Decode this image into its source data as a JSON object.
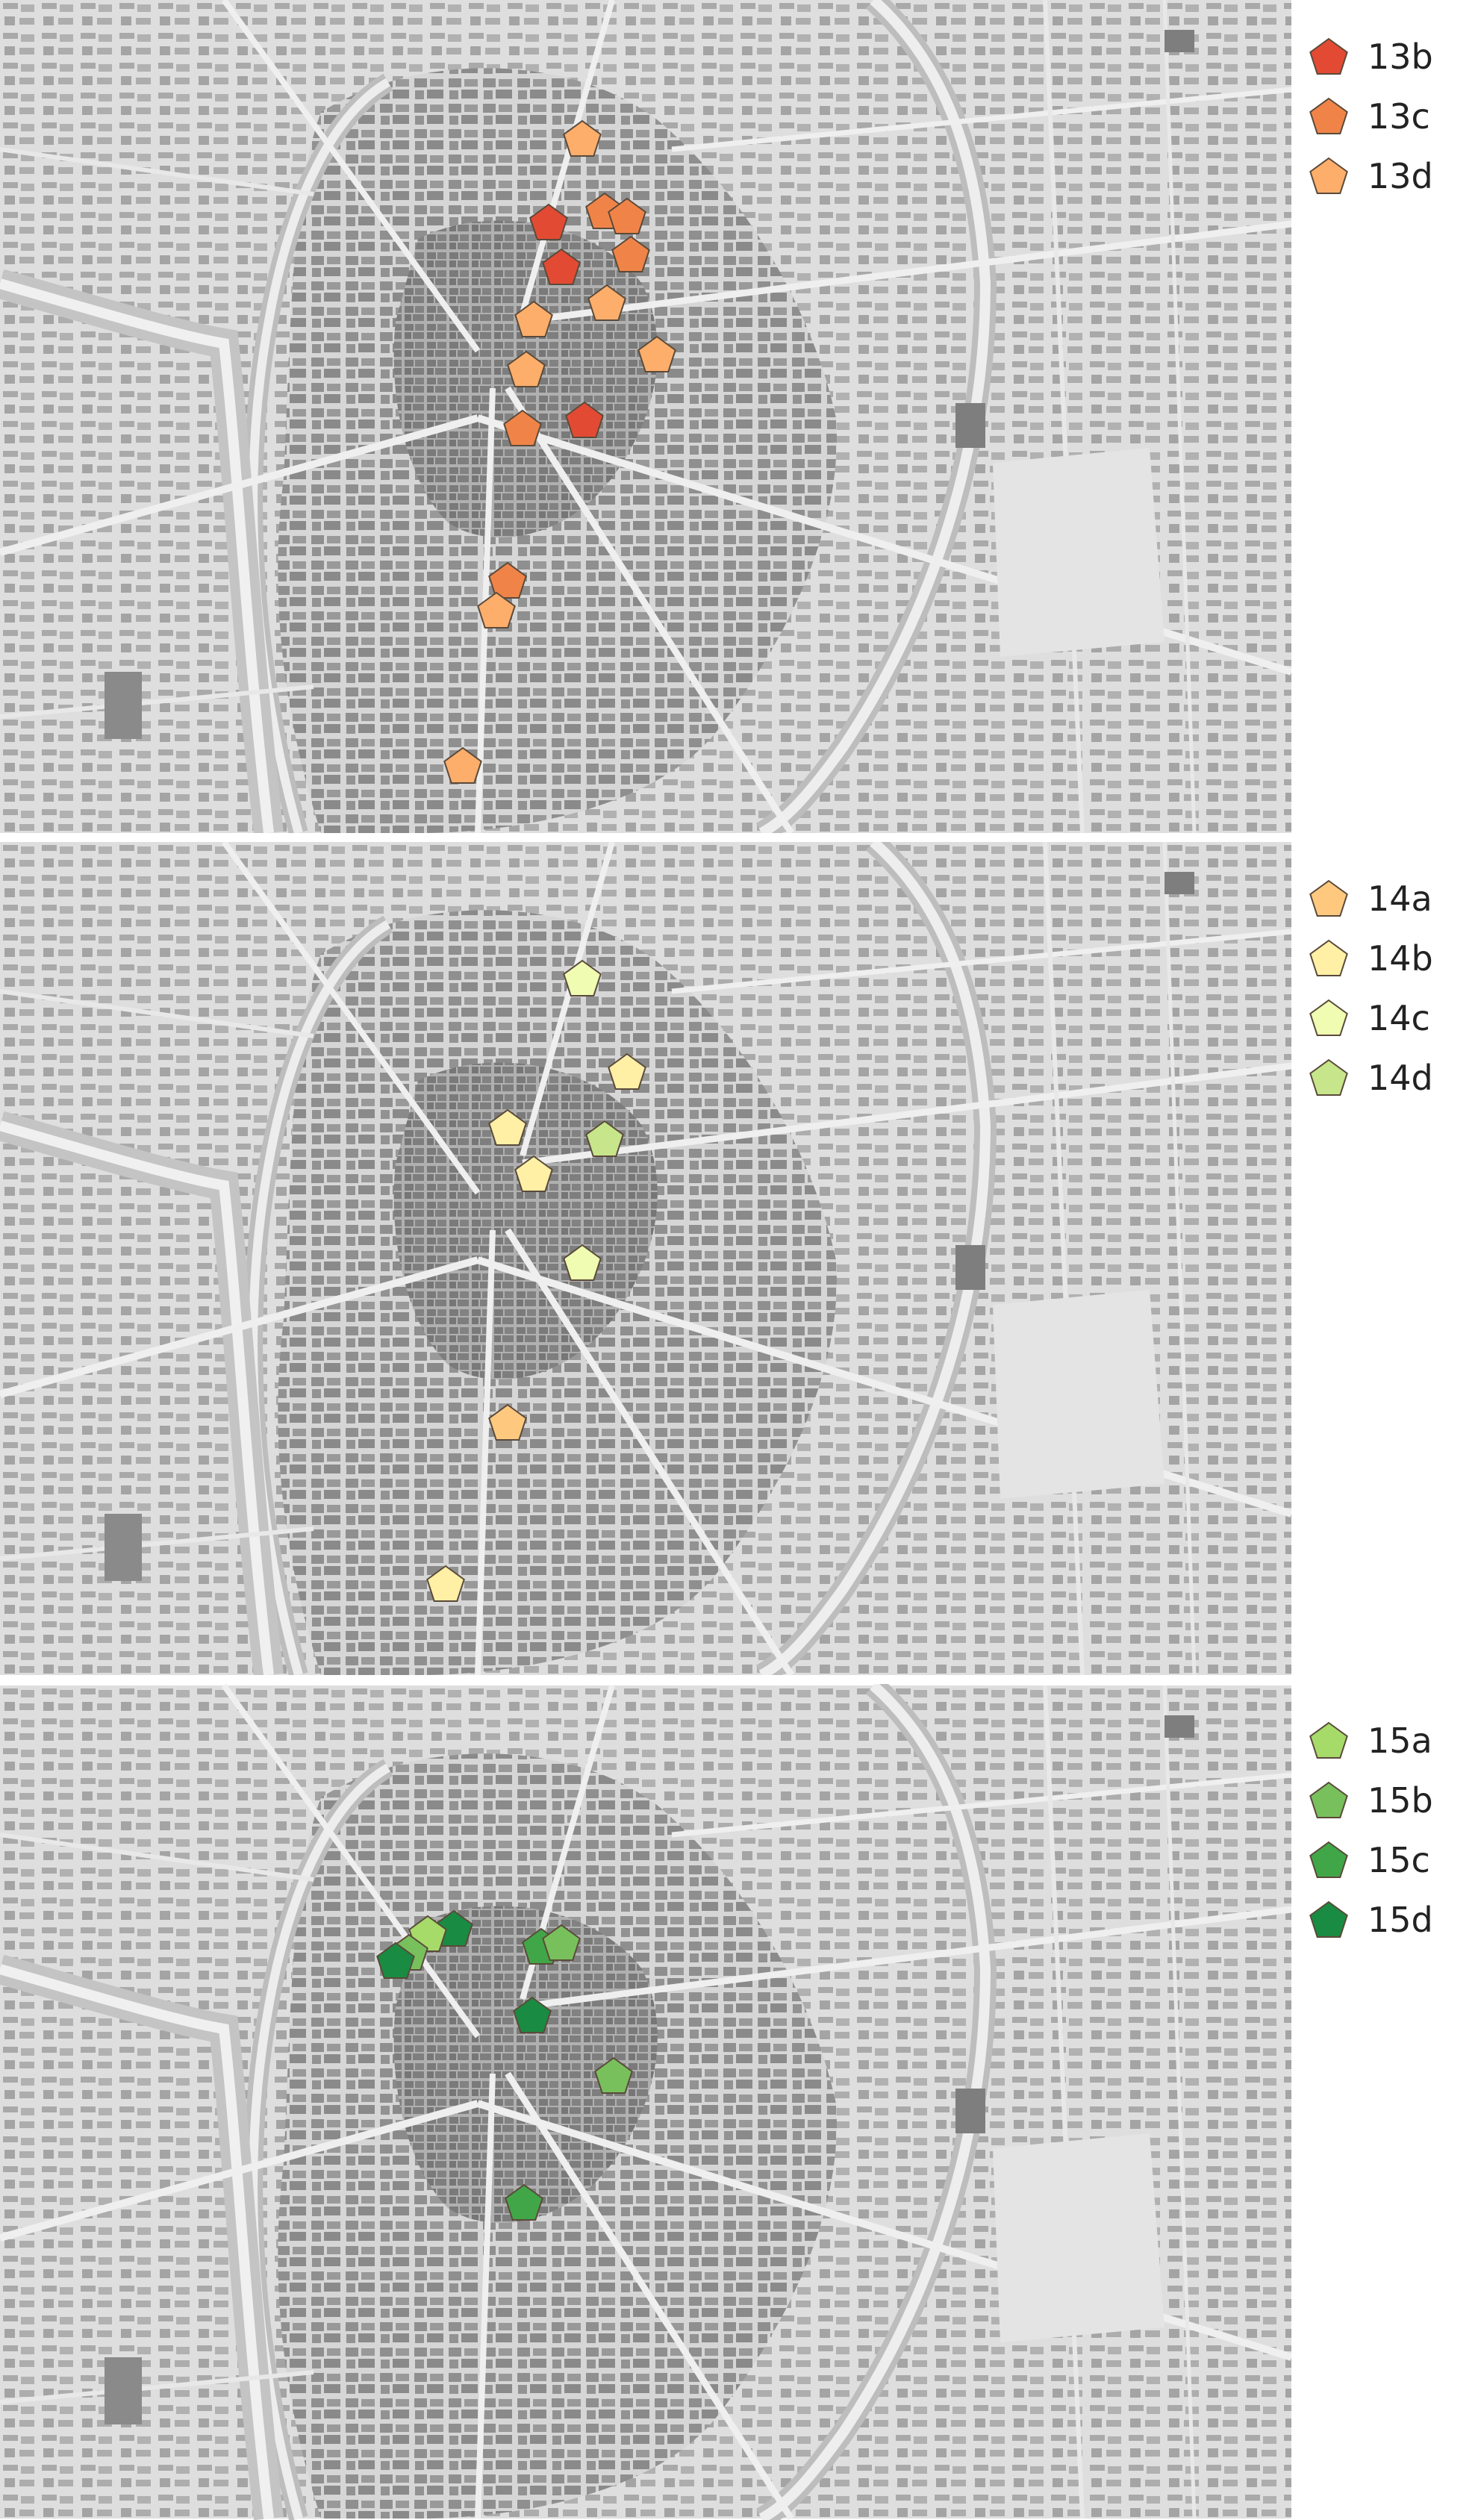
{
  "map_style": {
    "background": "#dcdcdc",
    "road_major": "#f2f2f2",
    "road_minor": "#c9c9c9",
    "block": "#8e8e8e",
    "block_dense": "#7c7c7c",
    "water": "#bdbdbd",
    "green": "#e6e6e6"
  },
  "panels": [
    {
      "legend": [
        {
          "label": "13b",
          "color": "#e34a33"
        },
        {
          "label": "13c",
          "color": "#f08448"
        },
        {
          "label": "13d",
          "color": "#fdae6b"
        }
      ],
      "markers": [
        {
          "series": "13d"
        },
        {
          "series": "13b"
        },
        {
          "series": "13c"
        },
        {
          "series": "13c"
        },
        {
          "series": "13b"
        },
        {
          "series": "13c"
        },
        {
          "series": "13d"
        },
        {
          "series": "13d"
        },
        {
          "series": "13d"
        },
        {
          "series": "13d"
        },
        {
          "series": "13c"
        },
        {
          "series": "13b"
        },
        {
          "series": "13c"
        },
        {
          "series": "13d"
        },
        {
          "series": "13d"
        }
      ]
    },
    {
      "legend": [
        {
          "label": "14a",
          "color": "#fec97f"
        },
        {
          "label": "14b",
          "color": "#fff0a5"
        },
        {
          "label": "14c",
          "color": "#effcb1"
        },
        {
          "label": "14d",
          "color": "#c7e58a"
        }
      ],
      "markers": [
        {
          "series": "14c"
        },
        {
          "series": "14b"
        },
        {
          "series": "14b"
        },
        {
          "series": "14d"
        },
        {
          "series": "14b"
        },
        {
          "series": "14c"
        },
        {
          "series": "14a"
        },
        {
          "series": "14b"
        }
      ]
    },
    {
      "legend": [
        {
          "label": "15a",
          "color": "#a6db6a"
        },
        {
          "label": "15b",
          "color": "#78c05c"
        },
        {
          "label": "15c",
          "color": "#41a647"
        },
        {
          "label": "15d",
          "color": "#1a8b42"
        }
      ],
      "markers": [
        {
          "series": "15d"
        },
        {
          "series": "15a"
        },
        {
          "series": "15b"
        },
        {
          "series": "15c"
        },
        {
          "series": "15b"
        },
        {
          "series": "15d"
        },
        {
          "series": "15d"
        },
        {
          "series": "15b"
        },
        {
          "series": "15c"
        }
      ]
    }
  ]
}
